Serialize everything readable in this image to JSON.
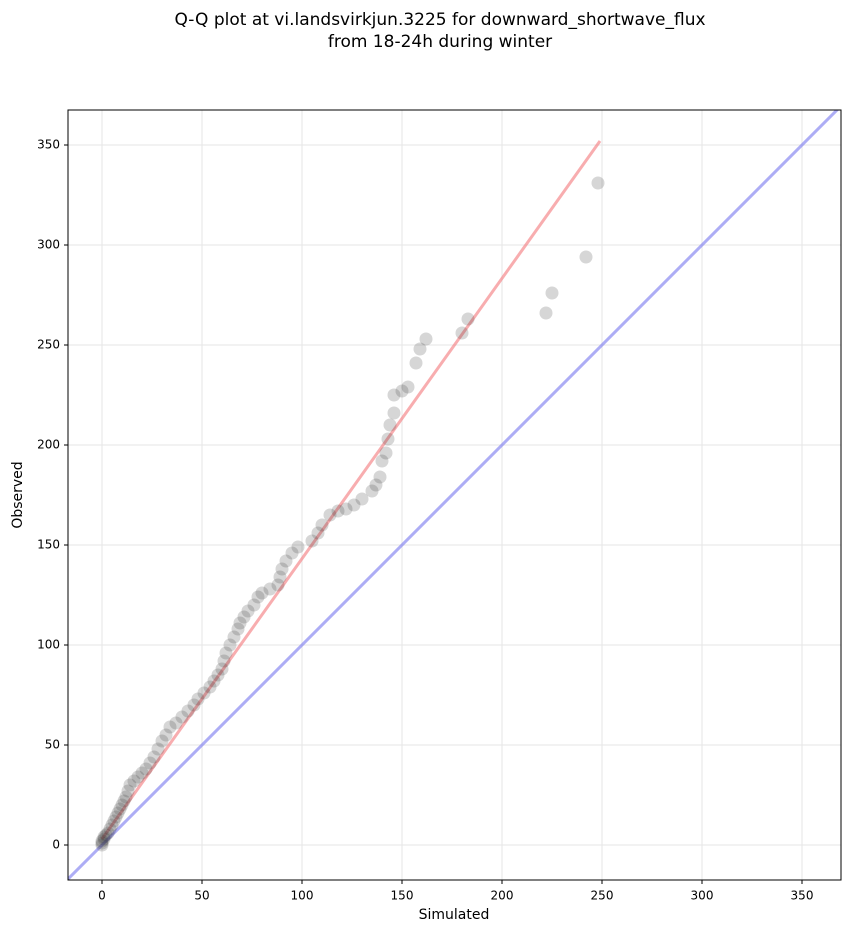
{
  "chart_data": {
    "type": "scatter",
    "title": [
      "Q-Q plot at vi.landsvirkjun.3225 for downward_shortwave_flux",
      "from 18-24h during winter"
    ],
    "x_label": "Simulated",
    "y_label": "Observed",
    "xlim": [
      -17,
      369.5
    ],
    "ylim": [
      -17.5,
      367.5
    ],
    "xticks": [
      0,
      50,
      100,
      150,
      200,
      250,
      300,
      350
    ],
    "yticks": [
      0,
      50,
      100,
      150,
      200,
      250,
      300,
      350
    ],
    "grid": true,
    "series": [
      {
        "color": "#333333",
        "x": [
          0,
          0,
          0,
          1,
          1,
          2,
          3,
          4,
          5,
          6,
          7,
          8,
          9,
          10,
          11,
          12,
          13,
          14,
          16,
          18,
          20,
          22,
          24,
          26,
          28,
          30,
          32,
          34,
          37,
          40,
          43,
          46,
          48,
          51,
          54,
          56,
          58,
          60,
          61,
          62,
          64,
          66,
          68,
          69,
          71,
          73,
          76,
          78,
          80,
          84,
          88,
          89,
          90,
          92,
          95,
          98,
          105,
          108,
          110,
          114,
          118,
          122,
          126,
          130,
          135,
          137,
          139,
          140,
          142,
          143,
          144,
          146,
          146,
          150,
          153,
          157,
          159,
          162,
          180,
          183,
          222,
          225,
          242,
          248
        ],
        "values": [
          0,
          1,
          2,
          3,
          4,
          5,
          6,
          8,
          10,
          12,
          14,
          16,
          18,
          20,
          22,
          24,
          27,
          30,
          32,
          34,
          36,
          38,
          41,
          44,
          48,
          52,
          55,
          59,
          61,
          64,
          67,
          70,
          73,
          76,
          79,
          82,
          85,
          88,
          92,
          96,
          100,
          104,
          108,
          111,
          114,
          117,
          120,
          124,
          126,
          128,
          130,
          134,
          138,
          142,
          146,
          149,
          152,
          156,
          160,
          165,
          167,
          168,
          170,
          173,
          177,
          180,
          184,
          192,
          196,
          203,
          210,
          216,
          225,
          227,
          229,
          241,
          248,
          253,
          256,
          263,
          266,
          276,
          294,
          331
        ]
      }
    ],
    "lines": [
      {
        "color": "#f4777a",
        "x": [
          0,
          249
        ],
        "values": [
          3,
          352
        ]
      },
      {
        "color": "#7777ee",
        "x": [
          -17.5,
          369.5
        ],
        "values": [
          -17.5,
          369.5
        ]
      }
    ]
  }
}
